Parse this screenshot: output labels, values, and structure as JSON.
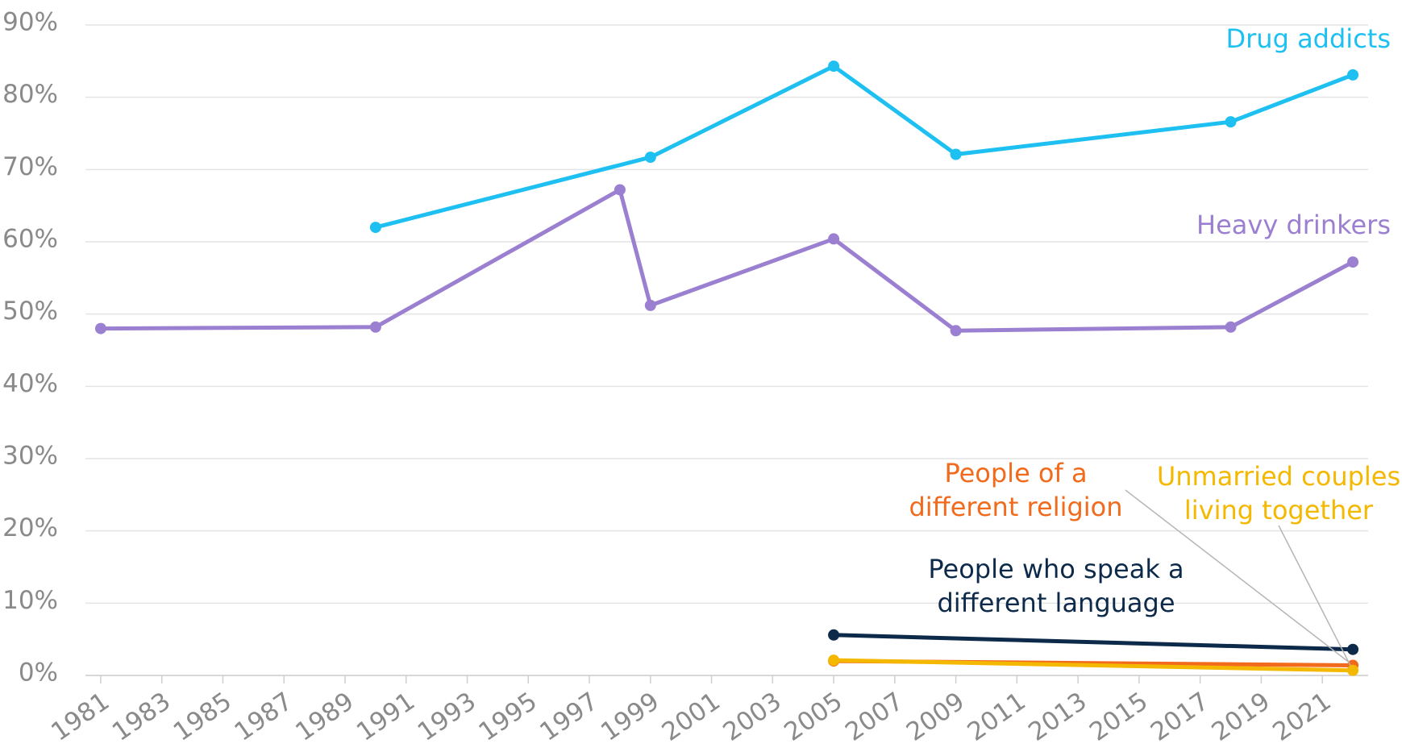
{
  "chart_data": {
    "type": "line",
    "xlim": [
      1980.5,
      2022.5
    ],
    "xticks": [
      1981,
      1983,
      1985,
      1987,
      1989,
      1991,
      1993,
      1995,
      1997,
      1999,
      2001,
      2003,
      2005,
      2007,
      2009,
      2011,
      2013,
      2015,
      2017,
      2019,
      2021
    ],
    "ylim": [
      0,
      90
    ],
    "yticks": [
      {
        "value": 0,
        "label": "0%"
      },
      {
        "value": 10,
        "label": "10%"
      },
      {
        "value": 20,
        "label": "20%"
      },
      {
        "value": 30,
        "label": "30%"
      },
      {
        "value": 40,
        "label": "40%"
      },
      {
        "value": 50,
        "label": "50%"
      },
      {
        "value": 60,
        "label": "60%"
      },
      {
        "value": 70,
        "label": "70%"
      },
      {
        "value": 80,
        "label": "80%"
      },
      {
        "value": 90,
        "label": "90%"
      }
    ],
    "grid": true,
    "series": [
      {
        "name": "Drug addicts",
        "color": "#1ec0f2",
        "x": [
          1990,
          1999,
          2005,
          2009,
          2018,
          2022
        ],
        "values": [
          62.0,
          71.7,
          84.3,
          72.1,
          76.6,
          83.1
        ]
      },
      {
        "name": "Heavy drinkers",
        "color": "#9b7fd0",
        "x": [
          1981,
          1990,
          1998,
          1999,
          2005,
          2009,
          2018,
          2022
        ],
        "values": [
          48.0,
          48.2,
          67.2,
          51.2,
          60.4,
          47.7,
          48.2,
          57.2
        ]
      },
      {
        "name": "People who speak a different language",
        "color": "#0d2a4a",
        "x": [
          2005,
          2022
        ],
        "values": [
          5.6,
          3.6
        ]
      },
      {
        "name": "People of a different religion",
        "color": "#f26a1b",
        "x": [
          2005,
          2022
        ],
        "values": [
          2.0,
          1.4
        ]
      },
      {
        "name": "Unmarried couples living together",
        "color": "#f5b800",
        "x": [
          2005,
          2022
        ],
        "values": [
          2.1,
          0.7
        ]
      }
    ]
  }
}
